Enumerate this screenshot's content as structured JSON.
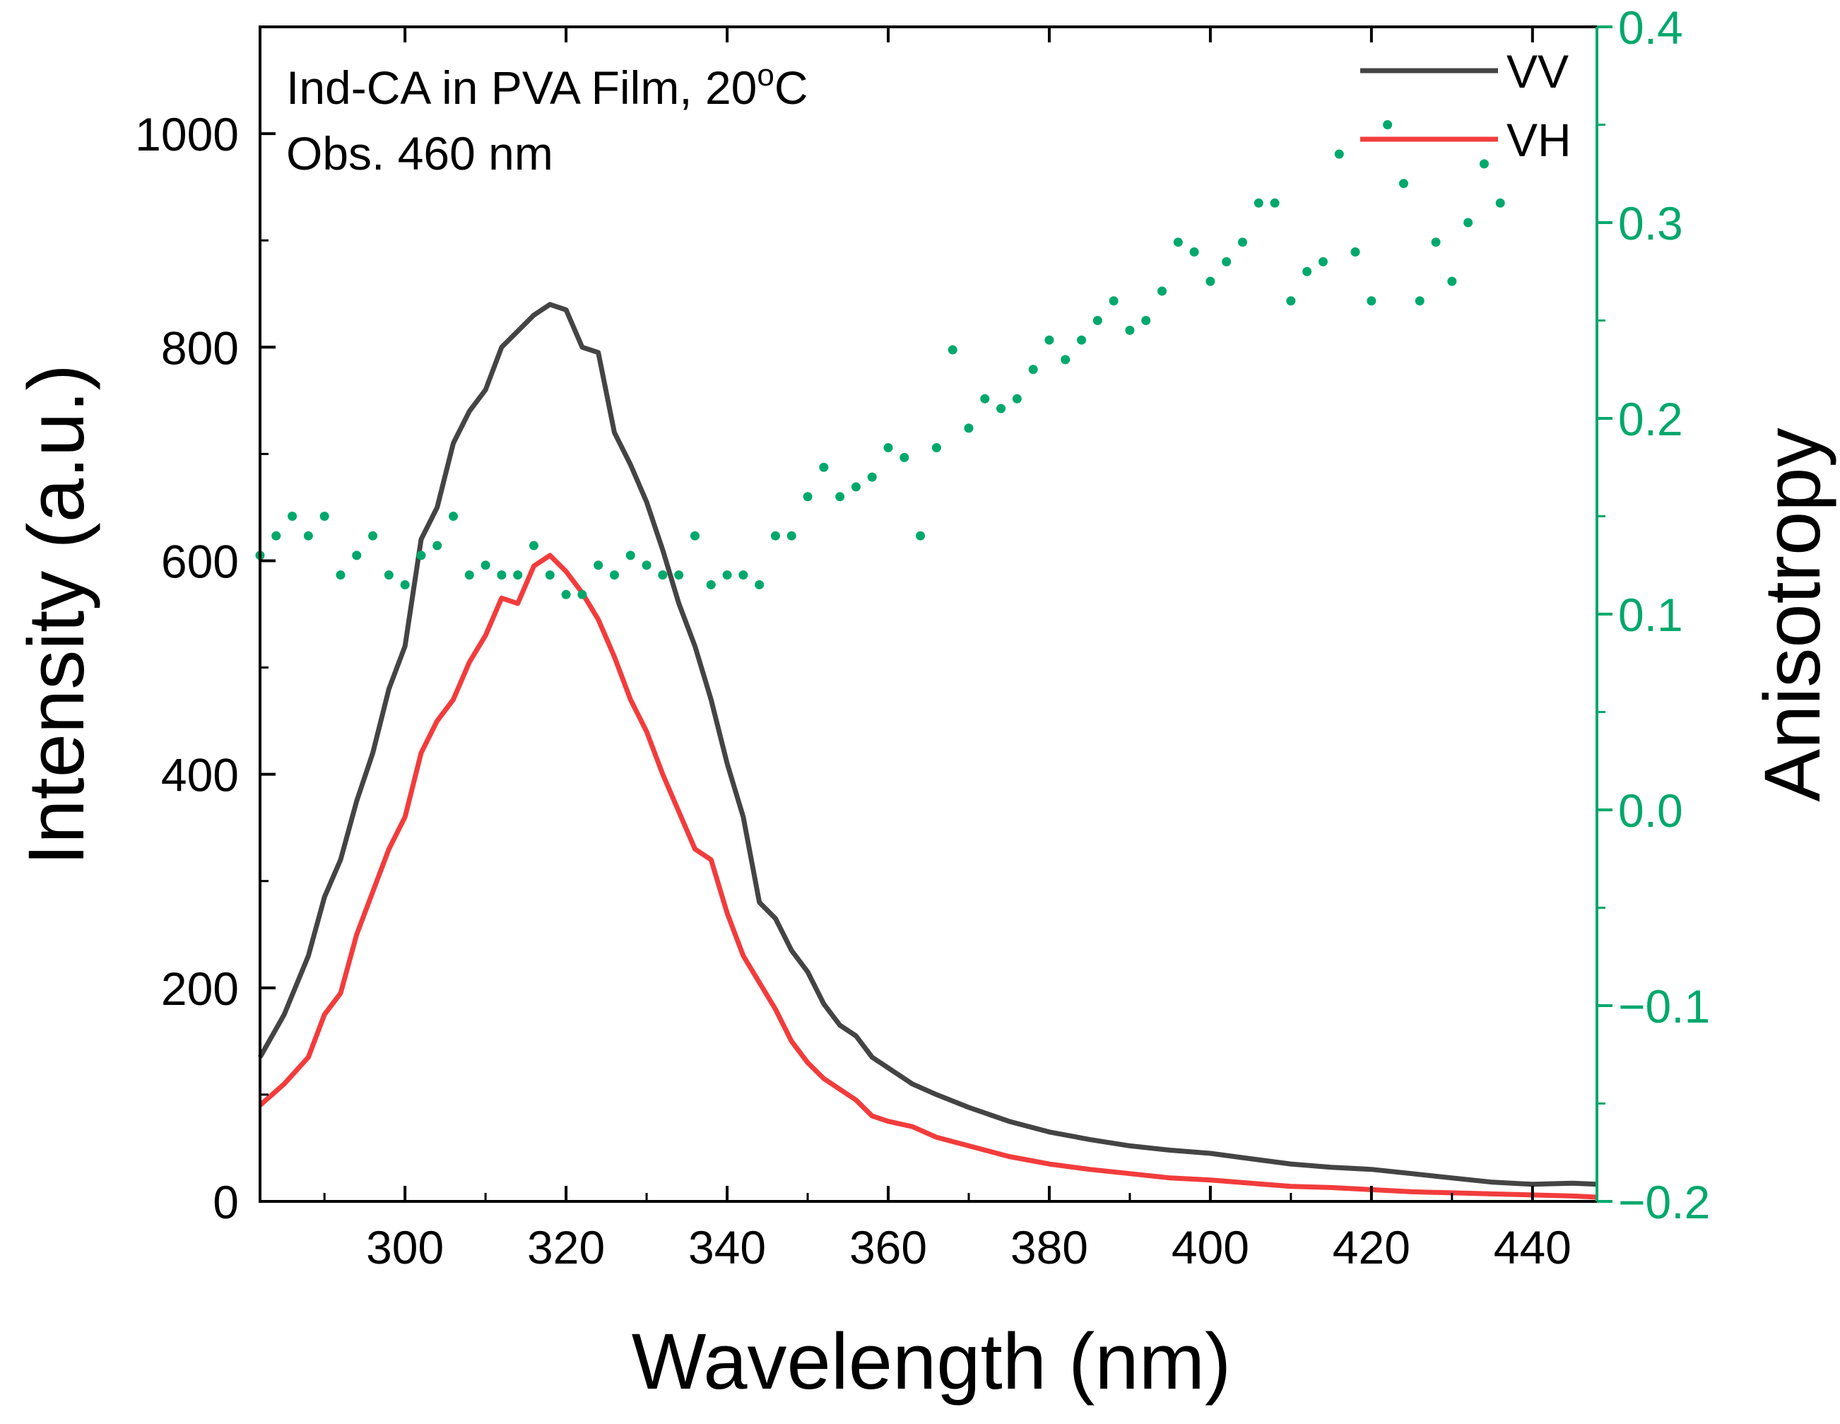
{
  "chart_data": {
    "type": "line",
    "xlabel": "Wavelength (nm)",
    "ylabel": "Intensity (a.u.)",
    "y2label": "Anisotropy",
    "xlim": [
      282,
      448
    ],
    "ylim": [
      0,
      1100
    ],
    "y2lim": [
      -0.2,
      0.4
    ],
    "xticks": [
      300,
      320,
      340,
      360,
      380,
      400,
      420,
      440
    ],
    "xtick_labels": [
      "300",
      "320",
      "340",
      "360",
      "380",
      "400",
      "420",
      "440"
    ],
    "yticks": [
      0,
      200,
      400,
      600,
      800,
      1000
    ],
    "ytick_labels": [
      "0",
      "200",
      "400",
      "600",
      "800",
      "1000"
    ],
    "y2ticks": [
      -0.2,
      -0.1,
      0.0,
      0.1,
      0.2,
      0.3,
      0.4
    ],
    "y2tick_labels": [
      "−0.2",
      "−0.1",
      "0.0",
      "0.1",
      "0.2",
      "0.3",
      "0.4"
    ],
    "annotation_line1": "Ind-CA in PVA Film, 20",
    "annotation_sup": "o",
    "annotation_unit": "C",
    "annotation_line2": "Obs. 460 nm",
    "legend_position": "top-right",
    "colors": {
      "vv": "#444444",
      "vh": "#f23c3c",
      "anisotropy": "#00a86b"
    },
    "series": [
      {
        "name": "VV",
        "axis": "left",
        "x": [
          282,
          285,
          288,
          290,
          292,
          294,
          296,
          298,
          300,
          302,
          304,
          306,
          308,
          310,
          312,
          314,
          316,
          318,
          320,
          322,
          324,
          326,
          328,
          330,
          332,
          334,
          336,
          338,
          340,
          342,
          344,
          346,
          348,
          350,
          352,
          354,
          356,
          358,
          360,
          363,
          366,
          370,
          375,
          380,
          385,
          390,
          395,
          400,
          405,
          410,
          415,
          420,
          425,
          430,
          435,
          440,
          445,
          448
        ],
        "values": [
          135,
          175,
          230,
          285,
          320,
          375,
          420,
          480,
          520,
          620,
          650,
          710,
          740,
          760,
          800,
          815,
          830,
          840,
          835,
          800,
          795,
          720,
          690,
          655,
          610,
          560,
          520,
          470,
          410,
          360,
          280,
          265,
          235,
          215,
          185,
          165,
          155,
          135,
          125,
          110,
          100,
          88,
          75,
          65,
          58,
          52,
          48,
          45,
          40,
          35,
          32,
          30,
          26,
          22,
          18,
          16,
          17,
          16
        ]
      },
      {
        "name": "VH",
        "axis": "left",
        "x": [
          282,
          285,
          288,
          290,
          292,
          294,
          296,
          298,
          300,
          302,
          304,
          306,
          308,
          310,
          312,
          314,
          316,
          318,
          320,
          322,
          324,
          326,
          328,
          330,
          332,
          334,
          336,
          338,
          340,
          342,
          344,
          346,
          348,
          350,
          352,
          354,
          356,
          358,
          360,
          363,
          366,
          370,
          375,
          380,
          385,
          390,
          395,
          400,
          405,
          410,
          415,
          420,
          425,
          430,
          435,
          440,
          445,
          448
        ],
        "values": [
          90,
          110,
          135,
          175,
          195,
          250,
          290,
          330,
          360,
          420,
          450,
          470,
          505,
          530,
          565,
          560,
          595,
          605,
          590,
          570,
          545,
          510,
          470,
          440,
          400,
          365,
          330,
          320,
          270,
          230,
          205,
          180,
          150,
          130,
          115,
          105,
          95,
          80,
          75,
          70,
          60,
          52,
          42,
          35,
          30,
          26,
          22,
          20,
          17,
          14,
          13,
          11,
          9,
          8,
          7,
          6,
          5,
          4
        ]
      },
      {
        "name": "Anisotropy",
        "axis": "right",
        "style": "dotted",
        "x": [
          282,
          284,
          286,
          288,
          290,
          292,
          294,
          296,
          298,
          300,
          302,
          304,
          306,
          308,
          310,
          312,
          314,
          316,
          318,
          320,
          322,
          324,
          326,
          328,
          330,
          332,
          334,
          336,
          338,
          340,
          342,
          344,
          346,
          348,
          350,
          352,
          354,
          356,
          358,
          360,
          362,
          364,
          366,
          368,
          370,
          372,
          374,
          376,
          378,
          380,
          382,
          384,
          386,
          388,
          390,
          392,
          394,
          396,
          398,
          400,
          402,
          404,
          406,
          408,
          410,
          412,
          414,
          416,
          418,
          420,
          422,
          424,
          426,
          428,
          430,
          432,
          434,
          436
        ],
        "values": [
          0.13,
          0.14,
          0.15,
          0.14,
          0.15,
          0.12,
          0.13,
          0.14,
          0.12,
          0.115,
          0.13,
          0.135,
          0.15,
          0.12,
          0.125,
          0.12,
          0.12,
          0.135,
          0.12,
          0.11,
          0.11,
          0.125,
          0.12,
          0.13,
          0.125,
          0.12,
          0.12,
          0.14,
          0.115,
          0.12,
          0.12,
          0.115,
          0.14,
          0.14,
          0.16,
          0.175,
          0.16,
          0.165,
          0.17,
          0.185,
          0.18,
          0.14,
          0.185,
          0.235,
          0.195,
          0.21,
          0.205,
          0.21,
          0.225,
          0.24,
          0.23,
          0.24,
          0.25,
          0.26,
          0.245,
          0.25,
          0.265,
          0.29,
          0.285,
          0.27,
          0.28,
          0.29,
          0.31,
          0.31,
          0.26,
          0.275,
          0.28,
          0.335,
          0.285,
          0.26,
          0.35,
          0.32,
          0.26,
          0.29,
          0.27,
          0.3,
          0.33,
          0.31
        ]
      }
    ]
  }
}
